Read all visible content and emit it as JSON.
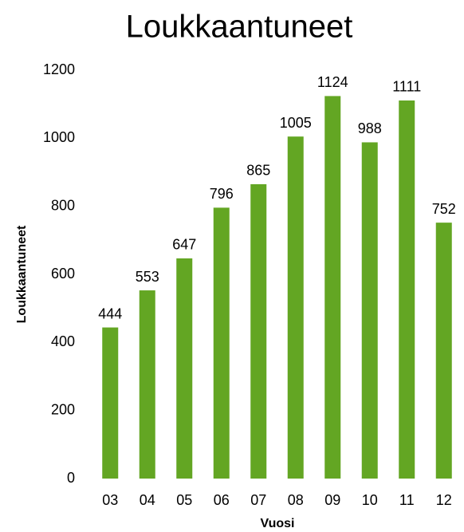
{
  "chart_data": {
    "type": "bar",
    "title": "Loukkaantuneet",
    "x_label": "Vuosi",
    "y_label": "Loukkaantuneet",
    "categories": [
      "03",
      "04",
      "05",
      "06",
      "07",
      "08",
      "09",
      "10",
      "11",
      "12"
    ],
    "values": [
      444,
      553,
      647,
      796,
      865,
      1005,
      1124,
      988,
      1111,
      752
    ],
    "color": "#63a623",
    "title_color": "#6aa434",
    "ylim": [
      0,
      1200
    ],
    "yticks": [
      0,
      200,
      400,
      600,
      800,
      1000,
      1200
    ],
    "grid": false
  }
}
